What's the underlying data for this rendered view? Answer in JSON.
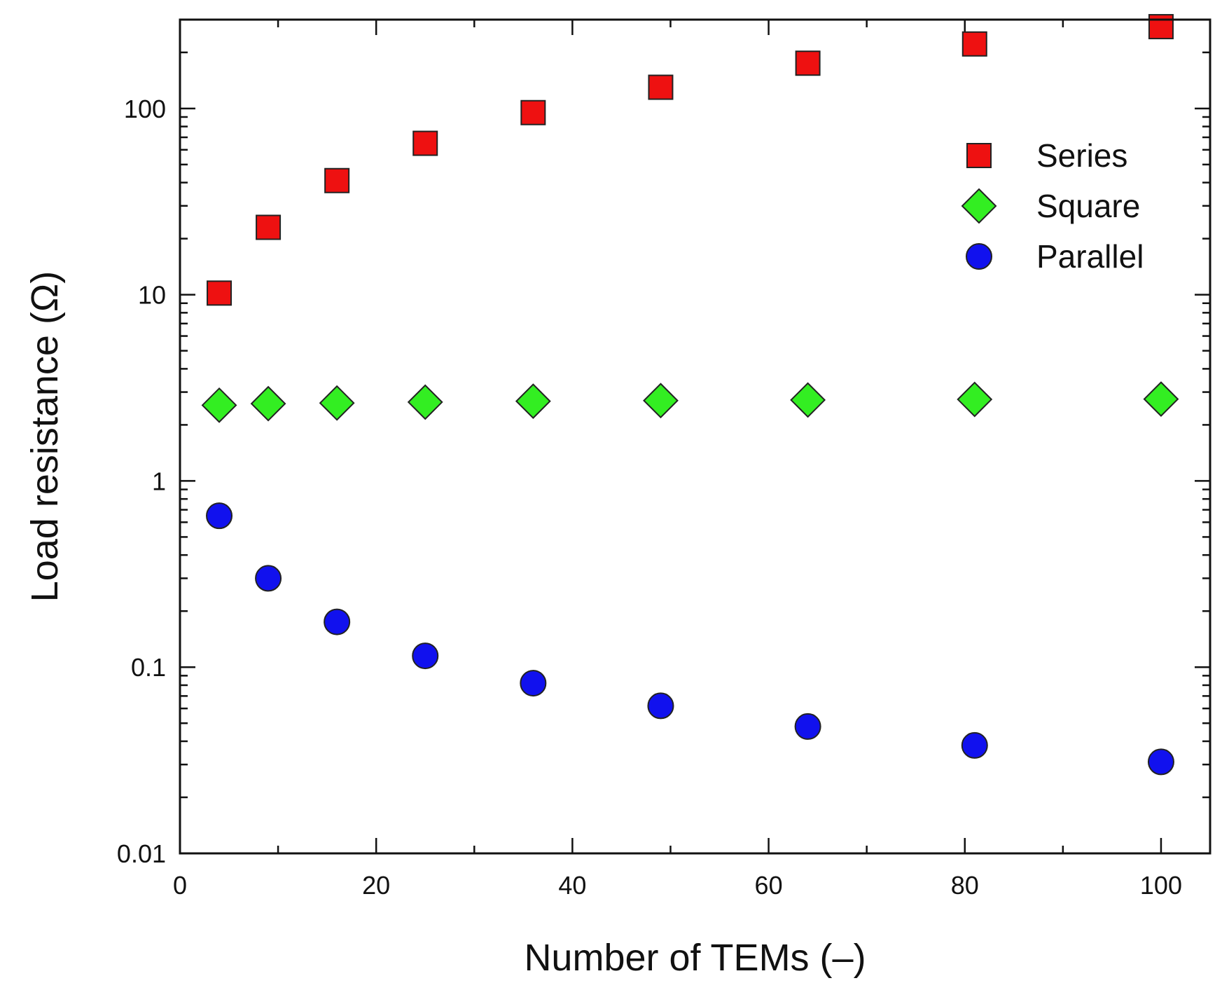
{
  "chart_data": {
    "type": "scatter",
    "title": "",
    "xlabel": "Number of TEMs (–)",
    "ylabel": "Load resistance (Ω)",
    "xlim": [
      0,
      105
    ],
    "ylim": [
      0.01,
      300
    ],
    "yscale": "log",
    "x_ticks": [
      0,
      20,
      40,
      60,
      80,
      100
    ],
    "x_tick_labels": [
      "0",
      "20",
      "40",
      "60",
      "80",
      "100"
    ],
    "y_ticks": [
      0.01,
      0.1,
      1,
      10,
      100
    ],
    "y_tick_labels": [
      "0.01",
      "0.1",
      "1",
      "10",
      "100"
    ],
    "grid": false,
    "legend_position": "top-right",
    "series": [
      {
        "name": "Series",
        "marker": "square",
        "color": "#ee1111",
        "x": [
          4,
          9,
          16,
          25,
          36,
          49,
          64,
          81,
          100
        ],
        "values": [
          10.2,
          23,
          41,
          65,
          95,
          130,
          175,
          222,
          275
        ]
      },
      {
        "name": "Square",
        "marker": "diamond",
        "color": "#33ee22",
        "x": [
          4,
          9,
          16,
          25,
          36,
          49,
          64,
          81,
          100
        ],
        "values": [
          2.55,
          2.6,
          2.62,
          2.65,
          2.68,
          2.7,
          2.72,
          2.74,
          2.75
        ]
      },
      {
        "name": "Parallel",
        "marker": "circle",
        "color": "#1111ee",
        "x": [
          4,
          9,
          16,
          25,
          36,
          49,
          64,
          81,
          100
        ],
        "values": [
          0.65,
          0.3,
          0.175,
          0.115,
          0.082,
          0.062,
          0.048,
          0.038,
          0.031
        ]
      }
    ]
  }
}
